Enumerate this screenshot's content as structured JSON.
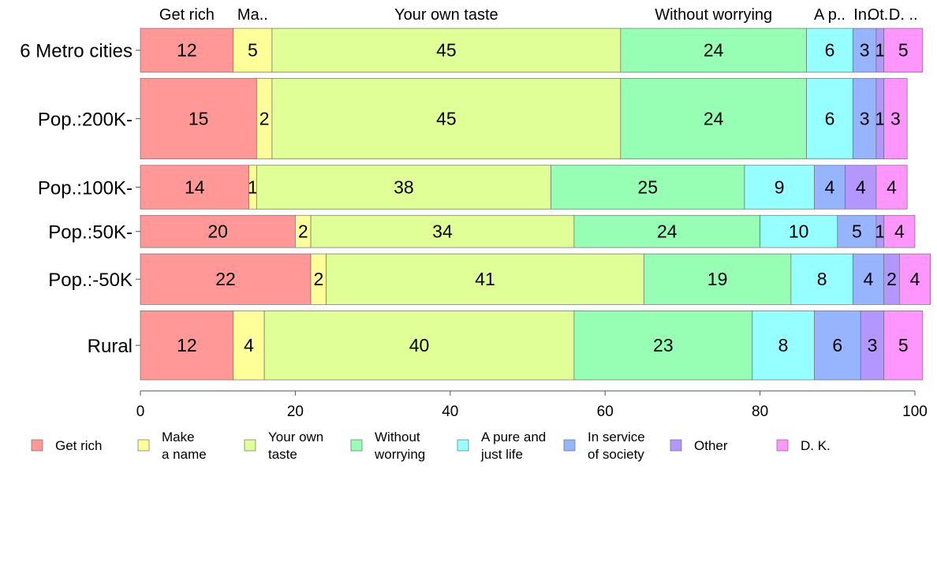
{
  "chart_data": {
    "type": "bar",
    "orientation": "horizontal",
    "stacked": true,
    "categories": [
      "6 Metro cities",
      "Pop.:200K-",
      "Pop.:100K-",
      "Pop.:50K-",
      "Pop.:-50K",
      "Rural"
    ],
    "category_weights": [
      0.095,
      0.175,
      0.095,
      0.07,
      0.11,
      0.15
    ],
    "series": [
      {
        "name": "Get rich",
        "legend": [
          "Get rich"
        ],
        "top_label": "Get rich",
        "color": "#ff9896",
        "values": [
          12,
          15,
          14,
          20,
          22,
          12
        ]
      },
      {
        "name": "Make a name",
        "legend": [
          "Make",
          "a name"
        ],
        "top_label": "Ma..",
        "color": "#ffff99",
        "values": [
          5,
          2,
          1,
          2,
          2,
          4
        ]
      },
      {
        "name": "Your own taste",
        "legend": [
          "Your own",
          "taste"
        ],
        "top_label": "Your own taste",
        "color": "#e0ff96",
        "values": [
          45,
          45,
          38,
          34,
          41,
          40
        ]
      },
      {
        "name": "Without worrying",
        "legend": [
          "Without",
          "worrying"
        ],
        "top_label": "Without worrying",
        "color": "#96ffb4",
        "values": [
          24,
          24,
          25,
          24,
          19,
          23
        ]
      },
      {
        "name": "A pure and just life",
        "legend": [
          "A pure and",
          "just life"
        ],
        "top_label": "A p..",
        "color": "#96ffff",
        "values": [
          6,
          6,
          9,
          10,
          8,
          8
        ]
      },
      {
        "name": "In service of society",
        "legend": [
          "In service",
          "of society"
        ],
        "top_label": "In..",
        "color": "#96b4ff",
        "values": [
          3,
          3,
          4,
          5,
          4,
          6
        ]
      },
      {
        "name": "Other",
        "legend": [
          "Other"
        ],
        "top_label": "Ot..",
        "color": "#b496ff",
        "values": [
          1,
          1,
          4,
          1,
          2,
          3
        ]
      },
      {
        "name": "D. K.",
        "legend": [
          "D. K."
        ],
        "top_label": "D. ..",
        "color": "#ff96ff",
        "values": [
          5,
          3,
          4,
          4,
          4,
          5
        ]
      }
    ],
    "xlim": [
      0,
      100
    ],
    "xticks": [
      "0",
      "20",
      "40",
      "60",
      "80",
      "100"
    ],
    "grid": false,
    "legend_position": "bottom"
  }
}
